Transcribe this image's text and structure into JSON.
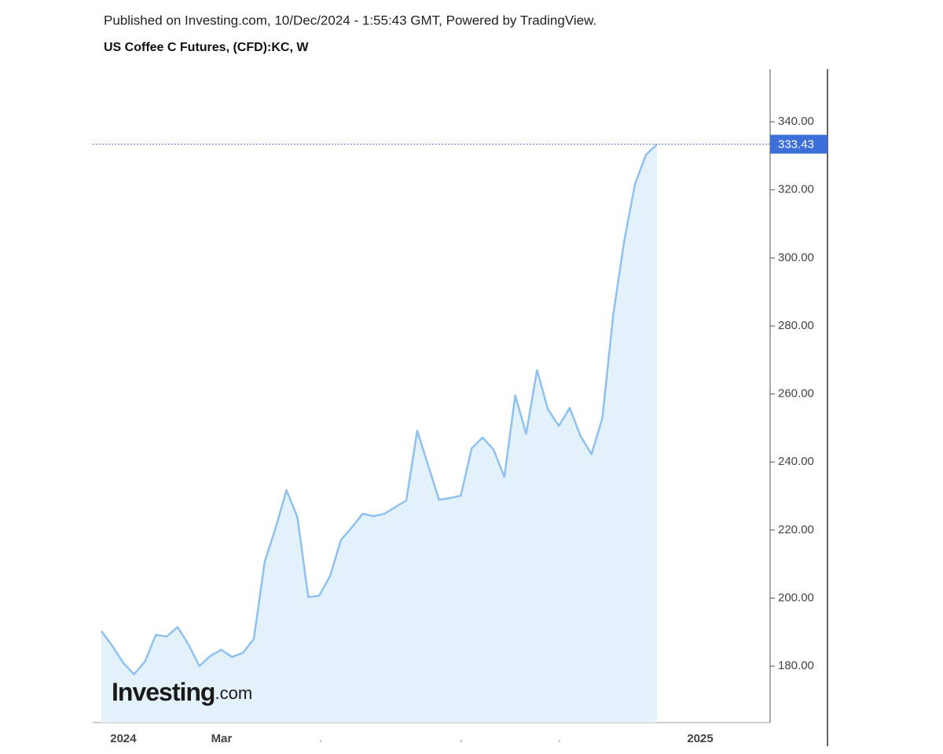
{
  "chart_data": {
    "type": "line",
    "header": "Published on Investing.com, 10/Dec/2024 - 1:55:43 GMT, Powered by TradingView.",
    "title": "US Coffee C Futures, (CFD):KC, W",
    "watermark": [
      "Investing",
      ".com"
    ],
    "color": "#8ec1ef",
    "fill": "#e3f1fb",
    "last_price_color": "#3d6fd8",
    "values": [
      190.3,
      186,
      181,
      177.6,
      181.3,
      189.2,
      188.7,
      191.5,
      186.4,
      180,
      183,
      184.8,
      182.7,
      183.9,
      188,
      210.7,
      220.6,
      231.7,
      223.8,
      200.3,
      200.7,
      206.5,
      217.1,
      220.8,
      224.8,
      224.1,
      224.8,
      226.8,
      228.7,
      249.2,
      239.1,
      228.9,
      229.4,
      230.1,
      244,
      247.2,
      243.7,
      235.6,
      259.6,
      248.3,
      267,
      255.5,
      250.6,
      255.9,
      247.6,
      242.3,
      252.9,
      283.4,
      304.9,
      321.8,
      330.3,
      333.43
    ],
    "xlim": [
      -0.79,
      61.4
    ],
    "xticks": [
      {
        "value": 2.02,
        "label": "2024"
      },
      {
        "value": 11.04,
        "label": "Mar"
      },
      {
        "value": 20.13,
        "label": null
      },
      {
        "value": 33.04,
        "label": null
      },
      {
        "value": 42.06,
        "label": null
      },
      {
        "value": 54.98,
        "label": "2025"
      }
    ],
    "ylim": [
      163.4,
      355.5
    ],
    "yticks": [
      {
        "value": 180,
        "label": "180.00"
      },
      {
        "value": 200,
        "label": "200.00"
      },
      {
        "value": 220,
        "label": "220.00"
      },
      {
        "value": 240,
        "label": "240.00"
      },
      {
        "value": 260,
        "label": "260.00"
      },
      {
        "value": 280,
        "label": "280.00"
      },
      {
        "value": 300,
        "label": "300.00"
      },
      {
        "value": 320,
        "label": "320.00"
      },
      {
        "value": 340,
        "label": "340.00"
      }
    ]
  }
}
